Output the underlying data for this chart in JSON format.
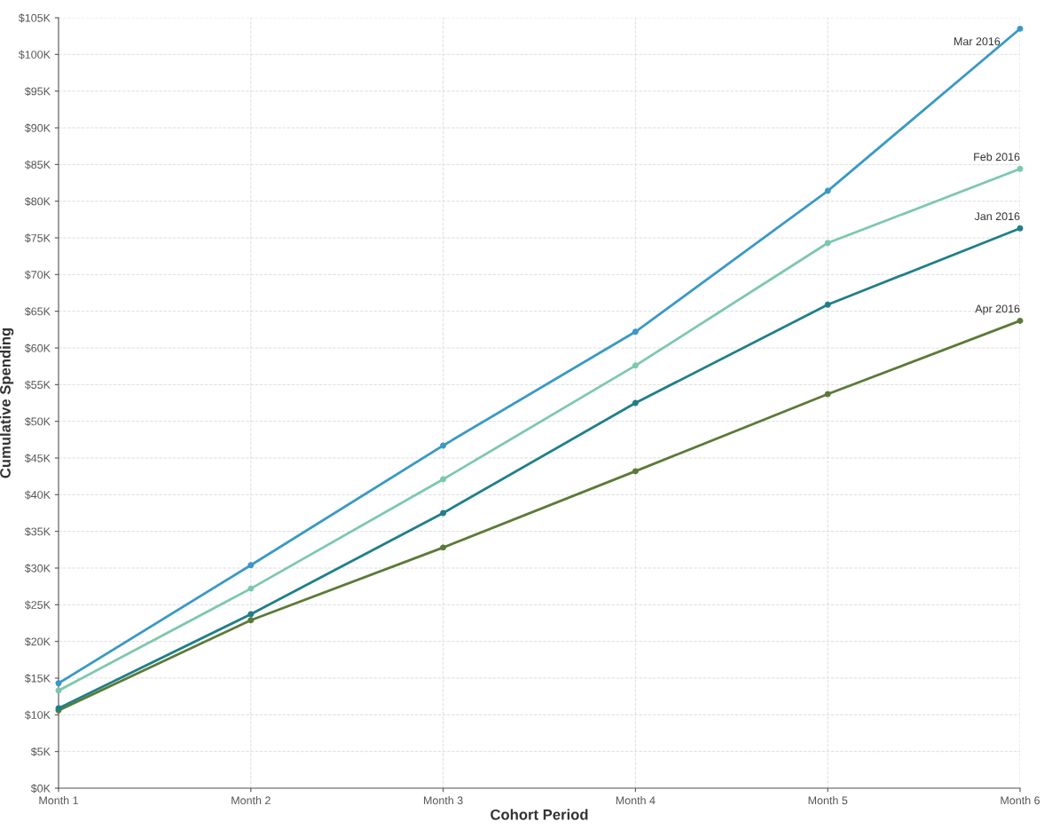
{
  "chart_data": {
    "type": "line",
    "xlabel": "Cohort Period",
    "ylabel": "Cumulative Spending",
    "categories": [
      "Month 1",
      "Month 2",
      "Month 3",
      "Month 4",
      "Month 5",
      "Month 6"
    ],
    "series": [
      {
        "name": "Mar 2016",
        "color": "#3a99c6",
        "values": [
          14.3,
          30.4,
          46.7,
          62.2,
          81.4,
          103.5
        ]
      },
      {
        "name": "Feb 2016",
        "color": "#7dc8ad",
        "values": [
          13.3,
          27.2,
          42.1,
          57.6,
          74.3,
          84.4
        ]
      },
      {
        "name": "Jan 2016",
        "color": "#1f7f8a",
        "values": [
          10.9,
          23.7,
          37.5,
          52.5,
          65.9,
          76.3
        ]
      },
      {
        "name": "Apr 2016",
        "color": "#5c7a37",
        "values": [
          10.6,
          22.9,
          32.8,
          43.2,
          53.7,
          63.7
        ]
      }
    ],
    "ylim": [
      0,
      105
    ],
    "yticks": [
      {
        "value": 0,
        "label": "$0K"
      },
      {
        "value": 5,
        "label": "$5K"
      },
      {
        "value": 10,
        "label": "$10K"
      },
      {
        "value": 15,
        "label": "$15K"
      },
      {
        "value": 20,
        "label": "$20K"
      },
      {
        "value": 25,
        "label": "$25K"
      },
      {
        "value": 30,
        "label": "$30K"
      },
      {
        "value": 35,
        "label": "$35K"
      },
      {
        "value": 40,
        "label": "$40K"
      },
      {
        "value": 45,
        "label": "$45K"
      },
      {
        "value": 50,
        "label": "$50K"
      },
      {
        "value": 55,
        "label": "$55K"
      },
      {
        "value": 60,
        "label": "$60K"
      },
      {
        "value": 65,
        "label": "$65K"
      },
      {
        "value": 70,
        "label": "$70K"
      },
      {
        "value": 75,
        "label": "$75K"
      },
      {
        "value": 80,
        "label": "$80K"
      },
      {
        "value": 85,
        "label": "$85K"
      },
      {
        "value": 90,
        "label": "$90K"
      },
      {
        "value": 95,
        "label": "$95K"
      },
      {
        "value": 100,
        "label": "$100K"
      },
      {
        "value": 105,
        "label": "$105K"
      }
    ],
    "grid": true,
    "marker": "circle",
    "line_style": "solid",
    "legend": false
  }
}
